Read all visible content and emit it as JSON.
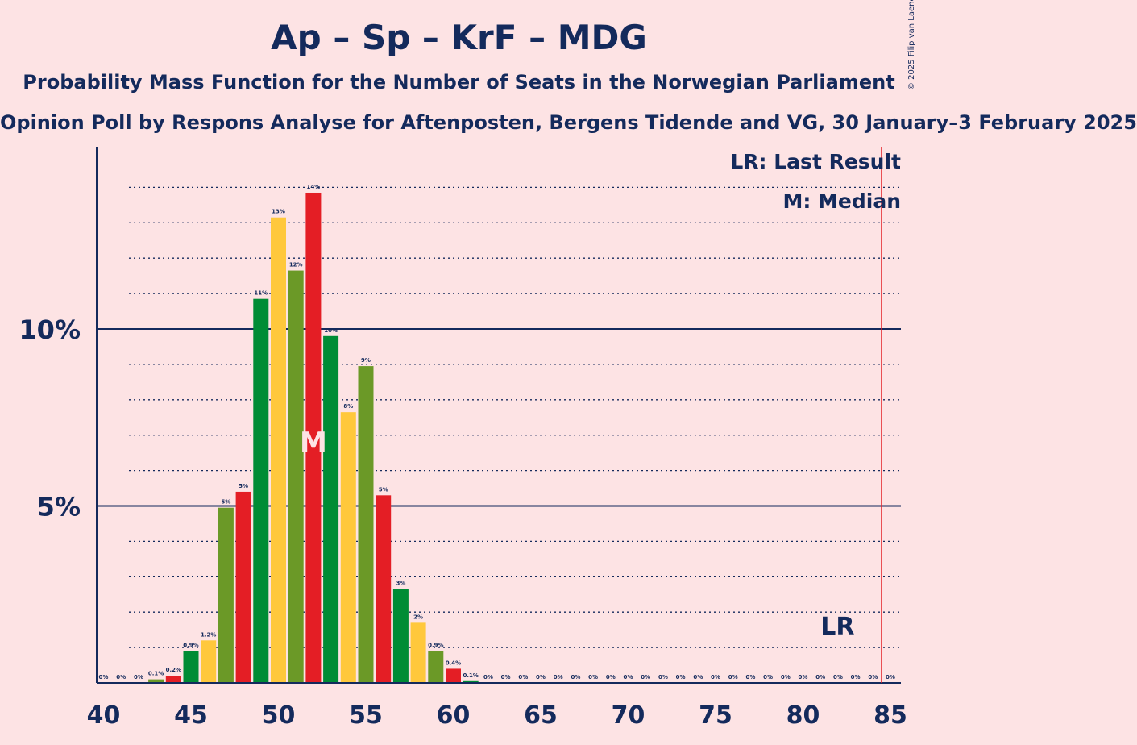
{
  "title": "Ap – Sp – KrF – MDG",
  "subtitle": "Probability Mass Function for the Number of Seats in the Norwegian Parliament",
  "poll": "Opinion Poll by Respons Analyse for Aftenposten, Bergens Tidende and VG, 30 January–3 February 2025",
  "copyright": "© 2025 Filip van Laenen",
  "legend": {
    "lr": "LR: Last Result",
    "median": "M: Median"
  },
  "markers": {
    "lr_label": "LR",
    "median_label": "M"
  },
  "colors": {
    "background": "#fde3e4",
    "text": "#142a5c",
    "bars": [
      "#008c35",
      "#ffc83c",
      "#6b9927",
      "#e41e25"
    ],
    "last_result_line": "#e41e25"
  },
  "chart_data": {
    "type": "bar",
    "x": [
      40,
      41,
      42,
      43,
      44,
      45,
      46,
      47,
      48,
      49,
      50,
      51,
      52,
      53,
      54,
      55,
      56,
      57,
      58,
      59,
      60,
      61,
      62,
      63,
      64,
      65,
      66,
      67,
      68,
      69,
      70,
      71,
      72,
      73,
      74,
      75,
      76,
      77,
      78,
      79,
      80,
      81,
      82,
      83,
      84,
      85
    ],
    "values": [
      0,
      0,
      0,
      0.1,
      0.2,
      0.9,
      1.2,
      4.95,
      5.4,
      10.85,
      13.15,
      11.65,
      13.85,
      9.8,
      7.65,
      8.95,
      5.3,
      2.65,
      1.7,
      0.9,
      0.4,
      0.05,
      0,
      0,
      0,
      0,
      0,
      0,
      0,
      0,
      0,
      0,
      0,
      0,
      0,
      0,
      0,
      0,
      0,
      0,
      0,
      0,
      0,
      0,
      0,
      0
    ],
    "labels": [
      "0%",
      "0%",
      "0%",
      "0.1%",
      "0.2%",
      "0.9%",
      "1.2%",
      "5%",
      "5%",
      "11%",
      "13%",
      "12%",
      "14%",
      "10%",
      "8%",
      "9%",
      "5%",
      "3%",
      "2%",
      "0.9%",
      "0.4%",
      "0.1%",
      "0%",
      "0%",
      "0%",
      "0%",
      "0%",
      "0%",
      "0%",
      "0%",
      "0%",
      "0%",
      "0%",
      "0%",
      "0%",
      "0%",
      "0%",
      "0%",
      "0%",
      "0%",
      "0%",
      "0%",
      "0%",
      "0%",
      "0%",
      "0%"
    ],
    "x_ticks": [
      40,
      45,
      50,
      55,
      60,
      65,
      70,
      75,
      80,
      85
    ],
    "x_tick_labels": [
      "40",
      "45",
      "50",
      "55",
      "60",
      "65",
      "70",
      "75",
      "80",
      "85"
    ],
    "y_ticks": [
      5,
      10
    ],
    "y_tick_labels": [
      "5%",
      "10%"
    ],
    "ylim": [
      0,
      15.2
    ],
    "xlim": [
      40,
      85
    ],
    "median": 52,
    "last_result": 85,
    "grid": true
  }
}
